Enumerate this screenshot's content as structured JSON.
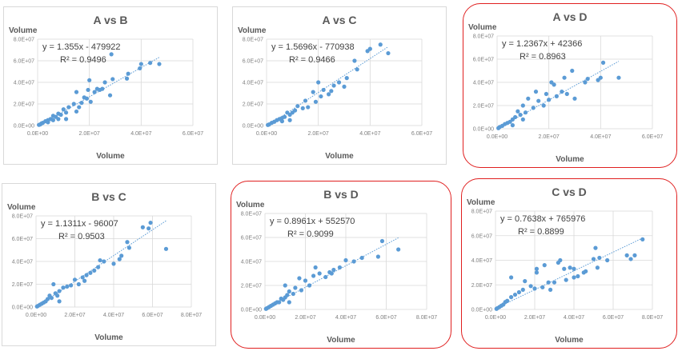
{
  "chart_data": [
    {
      "type": "scatter",
      "title": "A vs B",
      "xlabel": "Volume",
      "ylabel": "Volume",
      "xlim": [
        0,
        60000000
      ],
      "ylim": [
        0,
        80000000
      ],
      "xticks": [
        "0.0E+00",
        "2.0E+07",
        "4.0E+07",
        "6.0E+07"
      ],
      "yticks": [
        "0.0E+00",
        "2.0E+07",
        "4.0E+07",
        "6.0E+07",
        "8.0E+07"
      ],
      "equation": "y = 1.355x - 479922",
      "r2": "R² = 0.9496",
      "slope": 1.355,
      "intercept": -479922,
      "highlighted": false,
      "points_multiplier": 1000000,
      "points": [
        [
          47,
          57
        ],
        [
          43.5,
          58
        ],
        [
          40,
          57
        ],
        [
          39.5,
          53
        ],
        [
          35,
          48
        ],
        [
          34.5,
          43.5
        ],
        [
          29,
          43
        ],
        [
          28.5,
          66
        ],
        [
          28,
          28
        ],
        [
          26,
          40
        ],
        [
          25,
          34
        ],
        [
          24,
          33
        ],
        [
          23,
          34
        ],
        [
          22,
          31
        ],
        [
          20,
          42
        ],
        [
          19.5,
          33
        ],
        [
          20.5,
          22
        ],
        [
          19,
          25
        ],
        [
          18,
          26
        ],
        [
          17,
          21
        ],
        [
          15,
          31
        ],
        [
          16,
          17
        ],
        [
          15,
          13
        ],
        [
          14,
          20
        ],
        [
          12,
          17
        ],
        [
          11,
          12
        ],
        [
          10,
          15
        ],
        [
          9,
          10
        ],
        [
          8,
          11
        ],
        [
          7,
          8
        ],
        [
          6,
          9
        ],
        [
          5,
          6
        ],
        [
          4,
          5
        ],
        [
          3,
          4
        ],
        [
          2,
          2.5
        ],
        [
          1.5,
          2
        ],
        [
          1,
          1
        ],
        [
          0.5,
          0.6
        ],
        [
          11,
          6
        ],
        [
          8,
          6
        ],
        [
          6,
          5
        ],
        [
          4,
          3
        ]
      ]
    },
    {
      "type": "scatter",
      "title": "A vs C",
      "xlabel": "Volume",
      "ylabel": "Volume",
      "xlim": [
        0,
        60000000
      ],
      "ylim": [
        0,
        80000000
      ],
      "xticks": [
        "0.0E+00",
        "2.0E+07",
        "4.0E+07",
        "6.0E+07"
      ],
      "yticks": [
        "0.0E+00",
        "2.0E+07",
        "4.0E+07",
        "6.0E+07",
        "8.0E+07"
      ],
      "equation": "y = 1.5696x - 770938",
      "r2": "R² = 0.9466",
      "slope": 1.5696,
      "intercept": -770938,
      "highlighted": false,
      "points_multiplier": 1000000,
      "points": [
        [
          47,
          67
        ],
        [
          44,
          75
        ],
        [
          40,
          71
        ],
        [
          39,
          69
        ],
        [
          35,
          52
        ],
        [
          34,
          60
        ],
        [
          31,
          44
        ],
        [
          30,
          36
        ],
        [
          28,
          40
        ],
        [
          26,
          37
        ],
        [
          25,
          32
        ],
        [
          24,
          29
        ],
        [
          22,
          33
        ],
        [
          21,
          27
        ],
        [
          20,
          40
        ],
        [
          19,
          22
        ],
        [
          18,
          31
        ],
        [
          16,
          17
        ],
        [
          15,
          23
        ],
        [
          14,
          16
        ],
        [
          12,
          18
        ],
        [
          11,
          14
        ],
        [
          10,
          12
        ],
        [
          9,
          10
        ],
        [
          8,
          12
        ],
        [
          7,
          8
        ],
        [
          6,
          7
        ],
        [
          5,
          6
        ],
        [
          4,
          5
        ],
        [
          3,
          3.5
        ],
        [
          2,
          2.5
        ],
        [
          1,
          1
        ],
        [
          0.5,
          0.5
        ],
        [
          9,
          5
        ],
        [
          6,
          4
        ]
      ]
    },
    {
      "type": "scatter",
      "title": "A vs D",
      "xlabel": "Volume",
      "ylabel": "Volume",
      "xlim": [
        0,
        60000000
      ],
      "ylim": [
        0,
        80000000
      ],
      "xticks": [
        "0.0E+00",
        "2.0E+07",
        "4.0E+07",
        "6.0E+07"
      ],
      "yticks": [
        "0.0E+00",
        "2.0E+07",
        "4.0E+07",
        "6.0E+07",
        "8.0E+07"
      ],
      "equation": "y = 1.2367x + 42366",
      "r2": "R² = 0.8963",
      "slope": 1.2367,
      "intercept": 42366,
      "highlighted": true,
      "points_multiplier": 1000000,
      "points": [
        [
          47,
          44
        ],
        [
          41,
          57
        ],
        [
          40,
          44
        ],
        [
          39,
          42
        ],
        [
          35,
          43
        ],
        [
          34,
          40
        ],
        [
          30,
          26
        ],
        [
          29,
          50
        ],
        [
          27,
          30
        ],
        [
          26,
          44
        ],
        [
          25,
          32
        ],
        [
          23,
          28
        ],
        [
          22,
          38
        ],
        [
          21,
          40
        ],
        [
          20,
          25
        ],
        [
          19,
          30
        ],
        [
          18,
          20
        ],
        [
          16,
          24
        ],
        [
          15,
          32
        ],
        [
          14,
          18
        ],
        [
          12,
          26
        ],
        [
          11,
          14
        ],
        [
          10,
          20
        ],
        [
          9,
          12
        ],
        [
          8,
          15
        ],
        [
          7,
          10
        ],
        [
          6,
          8
        ],
        [
          5,
          6
        ],
        [
          4,
          5
        ],
        [
          3,
          4
        ],
        [
          2,
          2.5
        ],
        [
          1,
          1.5
        ],
        [
          0.5,
          0.5
        ],
        [
          10,
          8
        ],
        [
          6,
          3
        ]
      ]
    },
    {
      "type": "scatter",
      "title": "B vs C",
      "xlabel": "Volume",
      "ylabel": "Volume",
      "xlim": [
        0,
        80000000
      ],
      "ylim": [
        0,
        80000000
      ],
      "xticks": [
        "0.0E+00",
        "2.0E+07",
        "4.0E+07",
        "6.0E+07",
        "8.0E+07"
      ],
      "yticks": [
        "0.0E+00",
        "2.0E+07",
        "4.0E+07",
        "6.0E+07",
        "8.0E+07"
      ],
      "equation": "y = 1.1311x - 96007",
      "r2": "R² = 0.9503",
      "slope": 1.1311,
      "intercept": -96007,
      "highlighted": false,
      "points_multiplier": 1000000,
      "points": [
        [
          67,
          51
        ],
        [
          59,
          74
        ],
        [
          58,
          69
        ],
        [
          55,
          70
        ],
        [
          48,
          52
        ],
        [
          47,
          57
        ],
        [
          44,
          45
        ],
        [
          43,
          42
        ],
        [
          40,
          38
        ],
        [
          35,
          40
        ],
        [
          33,
          41
        ],
        [
          32,
          35
        ],
        [
          30,
          32
        ],
        [
          28,
          30
        ],
        [
          26,
          28
        ],
        [
          25,
          23
        ],
        [
          24,
          26
        ],
        [
          22,
          20
        ],
        [
          20,
          24
        ],
        [
          18,
          19
        ],
        [
          16,
          18
        ],
        [
          14,
          17
        ],
        [
          12,
          14
        ],
        [
          11,
          10
        ],
        [
          10,
          12
        ],
        [
          9,
          20
        ],
        [
          8,
          8
        ],
        [
          7,
          10
        ],
        [
          6,
          7
        ],
        [
          5,
          5
        ],
        [
          4,
          4
        ],
        [
          3,
          3
        ],
        [
          2,
          2
        ],
        [
          1,
          1
        ],
        [
          0.5,
          0.5
        ],
        [
          12,
          5
        ]
      ]
    },
    {
      "type": "scatter",
      "title": "B vs D",
      "xlabel": "Volume",
      "ylabel": "Volume",
      "xlim": [
        0,
        80000000
      ],
      "ylim": [
        0,
        80000000
      ],
      "xticks": [
        "0.0E+00",
        "2.0E+07",
        "4.0E+07",
        "6.0E+07",
        "8.0E+07"
      ],
      "yticks": [
        "0.0E+00",
        "2.0E+07",
        "4.0E+07",
        "6.0E+07",
        "8.0E+07"
      ],
      "equation": "y = 0.8961x + 552570",
      "r2": "R² = 0.9099",
      "slope": 0.8961,
      "intercept": 552570,
      "highlighted": true,
      "points_multiplier": 1000000,
      "points": [
        [
          66,
          50
        ],
        [
          58,
          57
        ],
        [
          56,
          44
        ],
        [
          48,
          43
        ],
        [
          44,
          40
        ],
        [
          40,
          41
        ],
        [
          37,
          35
        ],
        [
          34,
          33
        ],
        [
          33,
          30
        ],
        [
          32,
          31
        ],
        [
          30,
          27
        ],
        [
          27,
          30
        ],
        [
          25,
          35
        ],
        [
          24,
          28
        ],
        [
          22,
          20
        ],
        [
          20,
          24
        ],
        [
          18,
          16
        ],
        [
          17,
          26
        ],
        [
          15,
          18
        ],
        [
          14,
          13
        ],
        [
          12,
          15
        ],
        [
          11,
          12
        ],
        [
          10,
          10
        ],
        [
          9,
          8
        ],
        [
          8,
          9
        ],
        [
          7,
          6
        ],
        [
          6,
          6
        ],
        [
          5,
          5
        ],
        [
          4,
          4
        ],
        [
          3,
          3
        ],
        [
          2,
          2
        ],
        [
          1,
          1
        ],
        [
          0.5,
          0.5
        ],
        [
          10,
          20
        ],
        [
          12,
          6
        ]
      ]
    },
    {
      "type": "scatter",
      "title": "C vs D",
      "xlabel": "Volume",
      "ylabel": "Volume",
      "xlim": [
        0,
        80000000
      ],
      "ylim": [
        0,
        80000000
      ],
      "xticks": [
        "0.0E+00",
        "2.0E+07",
        "4.0E+07",
        "6.0E+07",
        "8.0E+07"
      ],
      "yticks": [
        "0.0E+00",
        "2.0E+07",
        "4.0E+07",
        "6.0E+07",
        "8.0E+07"
      ],
      "equation": "y = 0.7638x + 765976",
      "r2": "R² = 0.8899",
      "slope": 0.7638,
      "intercept": 765976,
      "highlighted": true,
      "points_multiplier": 1000000,
      "points": [
        [
          75,
          57
        ],
        [
          71,
          44
        ],
        [
          69,
          41
        ],
        [
          67,
          44
        ],
        [
          57,
          40
        ],
        [
          53,
          42
        ],
        [
          52,
          34
        ],
        [
          51,
          50
        ],
        [
          50,
          41
        ],
        [
          46,
          31
        ],
        [
          45,
          30
        ],
        [
          42,
          27
        ],
        [
          40,
          26
        ],
        [
          40,
          33
        ],
        [
          38,
          34
        ],
        [
          36,
          24
        ],
        [
          35,
          33
        ],
        [
          33,
          40
        ],
        [
          32,
          38
        ],
        [
          30,
          22
        ],
        [
          28,
          16
        ],
        [
          27,
          22
        ],
        [
          25,
          36
        ],
        [
          24,
          18
        ],
        [
          21,
          33
        ],
        [
          21,
          30
        ],
        [
          20,
          17
        ],
        [
          18,
          19
        ],
        [
          15,
          23
        ],
        [
          14,
          16
        ],
        [
          12,
          14
        ],
        [
          10,
          12
        ],
        [
          8,
          26
        ],
        [
          8,
          10
        ],
        [
          6,
          7
        ],
        [
          5,
          6
        ],
        [
          4,
          4
        ],
        [
          3,
          3
        ],
        [
          2,
          2
        ],
        [
          1,
          1
        ],
        [
          0.5,
          0.5
        ]
      ]
    }
  ],
  "colors": {
    "marker": "#5b9bd5",
    "grid": "#d9d9d9",
    "highlight": "#e02020"
  }
}
